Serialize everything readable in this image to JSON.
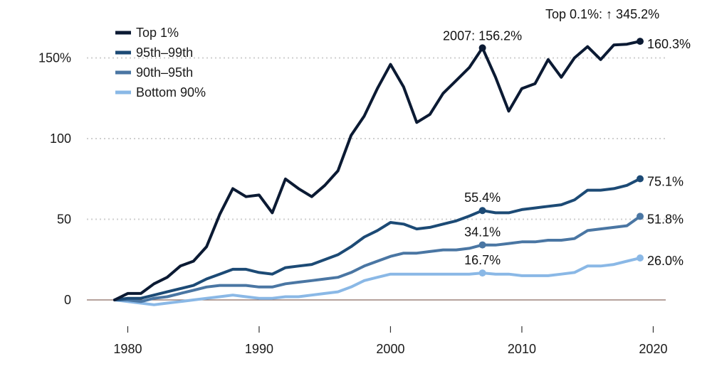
{
  "chart_data": {
    "type": "line",
    "title": "",
    "xlabel": "",
    "ylabel": "",
    "xlim": [
      1976,
      2022
    ],
    "ylim": [
      -15,
      160
    ],
    "x_ticks": [
      1980,
      1990,
      2000,
      2010,
      2020
    ],
    "x_tick_labels": [
      "1980",
      "1990",
      "2000",
      "2010",
      "2020"
    ],
    "y_ticks": [
      0,
      50,
      100,
      150
    ],
    "y_tick_labels": [
      "0",
      "50",
      "100",
      "150%"
    ],
    "grid": "horizontal dotted",
    "legend_placement": "top-left",
    "x": [
      1979,
      1980,
      1981,
      1982,
      1983,
      1984,
      1985,
      1986,
      1987,
      1988,
      1989,
      1990,
      1991,
      1992,
      1993,
      1994,
      1995,
      1996,
      1997,
      1998,
      1999,
      2000,
      2001,
      2002,
      2003,
      2004,
      2005,
      2006,
      2007,
      2008,
      2009,
      2010,
      2011,
      2012,
      2013,
      2014,
      2015,
      2016,
      2017,
      2018,
      2019
    ],
    "series": [
      {
        "name": "Top 1%",
        "color": "#0b1a33",
        "values": [
          0,
          4,
          4,
          10,
          14,
          21,
          24,
          33,
          53,
          69,
          64,
          65,
          54,
          75,
          69,
          64,
          71,
          80,
          102,
          114,
          131,
          146,
          132,
          110,
          115,
          128,
          136,
          144,
          156.2,
          138,
          117,
          131,
          134,
          149,
          138,
          150,
          157,
          149,
          158,
          158.5,
          160.3
        ],
        "end_label": "160.3%",
        "peak_label": "2007: 156.2%",
        "peak_x": 2007
      },
      {
        "name": "95th–99th",
        "color": "#1c4a75",
        "values": [
          0,
          1,
          1,
          3,
          5,
          7,
          9,
          13,
          16,
          19,
          19,
          17,
          16,
          20,
          21,
          22,
          25,
          28,
          33,
          39,
          43,
          48,
          47,
          44,
          45,
          47,
          49,
          52,
          55.4,
          54,
          54,
          56,
          57,
          58,
          59,
          62,
          68,
          68,
          69,
          71,
          75.1
        ],
        "end_label": "75.1%",
        "mid_label": "55.4%",
        "mid_x": 2007
      },
      {
        "name": "90th–95th",
        "color": "#4a76a3",
        "values": [
          0,
          0,
          -1,
          1,
          2,
          4,
          6,
          8,
          9,
          9,
          9,
          8,
          8,
          10,
          11,
          12,
          13,
          14,
          17,
          21,
          24,
          27,
          29,
          29,
          30,
          31,
          31,
          32,
          34.1,
          34,
          35,
          36,
          36,
          37,
          37,
          38,
          43,
          44,
          45,
          46,
          51.8
        ],
        "end_label": "51.8%",
        "mid_label": "34.1%",
        "mid_x": 2007
      },
      {
        "name": "Bottom 90%",
        "color": "#8ab8e6",
        "values": [
          0,
          -1,
          -2,
          -3,
          -2,
          -1,
          0,
          1,
          2,
          3,
          2,
          1,
          1,
          2,
          2,
          3,
          4,
          5,
          8,
          12,
          14,
          16,
          16,
          16,
          16,
          16,
          16,
          16,
          16.7,
          16,
          16,
          15,
          15,
          15,
          16,
          17,
          21,
          21,
          22,
          24,
          26.0
        ],
        "end_label": "26.0%",
        "mid_label": "16.7%",
        "mid_x": 2007
      }
    ],
    "annotation_top": "Top 0.1%: ↑ 345.2%"
  }
}
